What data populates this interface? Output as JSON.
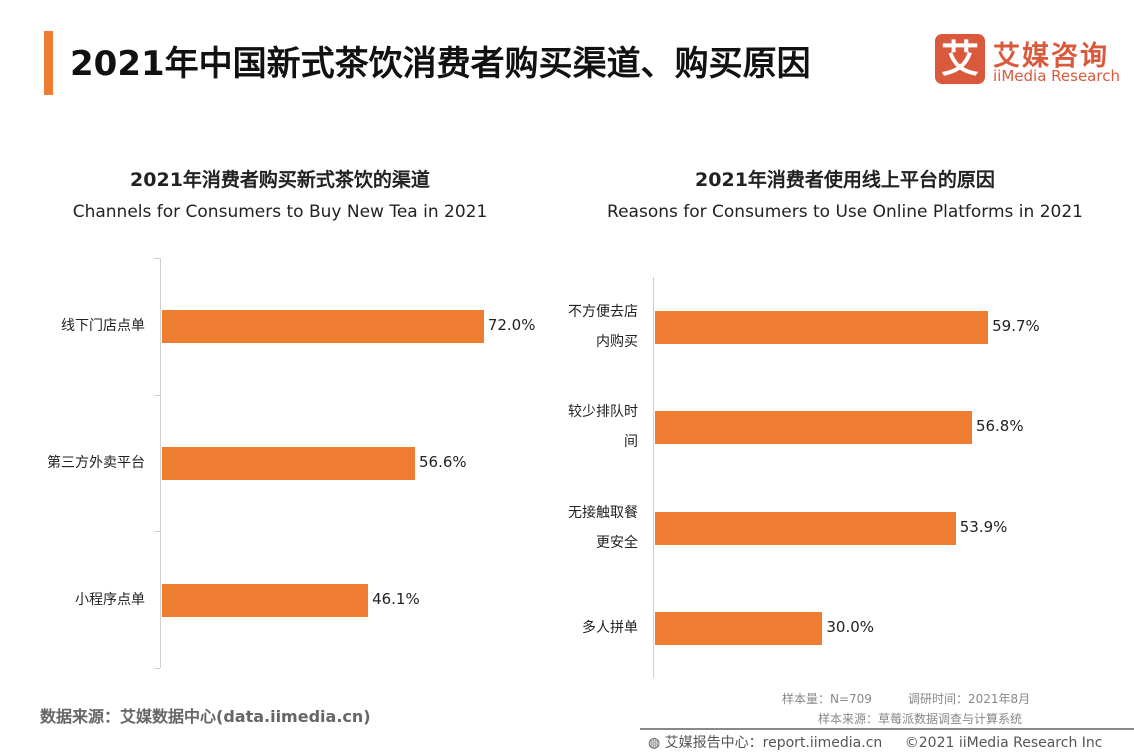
{
  "header": {
    "title": "2021年中国新式茶饮消费者购买渠道、购买原因",
    "logo_cn": "艾媒咨询",
    "logo_en": "iiMedia Research",
    "logo_mark": "艾",
    "accent": "#ee7d31",
    "logo_color": "#d9593c"
  },
  "chart_data": [
    {
      "type": "bar",
      "orientation": "horizontal",
      "title": "2021年消费者购买新式茶饮的渠道",
      "subtitle": "Channels for Consumers to Buy New Tea in 2021",
      "categories": [
        "线下门店点单",
        "第三方外卖平台",
        "小程序点单"
      ],
      "values": [
        72.0,
        56.6,
        46.1
      ],
      "labels": [
        "72.0%",
        "56.6%",
        "46.1%"
      ],
      "unit": "%",
      "color": "#ee7d31"
    },
    {
      "type": "bar",
      "orientation": "horizontal",
      "title": "2021年消费者使用线上平台的原因",
      "subtitle": "Reasons for Consumers to Use Online Platforms in 2021",
      "categories": [
        [
          "不方便去店",
          "内购买"
        ],
        [
          "较少排队时",
          "间"
        ],
        [
          "无接触取餐",
          "更安全"
        ],
        [
          "多人拼单"
        ]
      ],
      "values": [
        59.7,
        56.8,
        53.9,
        30.0
      ],
      "labels": [
        "59.7%",
        "56.8%",
        "53.9%",
        "30.0%"
      ],
      "unit": "%",
      "color": "#ee7d31"
    }
  ],
  "footer": {
    "source": "数据来源：艾媒数据中心(data.iimedia.cn)",
    "sample": "样本量：N=709",
    "survey_time": "调研时间：2021年8月",
    "sample_source": "样本来源：草莓派数据调查与计算系统",
    "report": "艾媒报告中心：report.iimedia.cn",
    "copyright": "©2021  iiMedia Research  Inc"
  }
}
